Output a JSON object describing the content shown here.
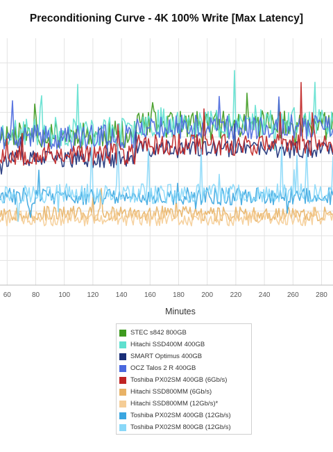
{
  "chart_data": {
    "type": "line",
    "title": "Preconditioning Curve - 4K 100% Write [Max Latency]",
    "xlabel": "Minutes",
    "ylabel": "",
    "x_ticks": [
      60,
      80,
      100,
      120,
      140,
      160,
      180,
      200,
      220,
      240,
      260,
      280
    ],
    "xlim": [
      55,
      288
    ],
    "ylim": [
      0,
      10
    ],
    "y_gridlines": [
      1,
      2,
      3,
      4,
      5,
      6,
      7,
      8,
      9
    ],
    "grid": true,
    "legend_position": "bottom",
    "series": [
      {
        "name": "STEC s842 800GB",
        "color": "#3e9a1f",
        "level": 6.1,
        "noise": 0.55,
        "spike": 1.4,
        "seed": 11
      },
      {
        "name": "Hitachi SSD400M 400GB",
        "color": "#5fe0cf",
        "level": 6.2,
        "noise": 0.6,
        "spike": 1.5,
        "seed": 23
      },
      {
        "name": "SMART Optimus 400GB",
        "color": "#1a2f78",
        "level": 5.1,
        "noise": 0.35,
        "spike": 0.7,
        "seed": 37
      },
      {
        "name": "OCZ Talos 2 R 400GB",
        "color": "#4a68de",
        "level": 6.0,
        "noise": 0.5,
        "spike": 1.2,
        "seed": 41
      },
      {
        "name": "Toshiba PX02SM 400GB (6Gb/s)",
        "color": "#c02424",
        "level": 5.3,
        "noise": 0.45,
        "spike": 1.8,
        "seed": 53
      },
      {
        "name": "Hitachi SSD800MM (6Gb/s)",
        "color": "#e8b266",
        "level": 2.9,
        "noise": 0.3,
        "spike": 0.6,
        "seed": 67
      },
      {
        "name": "Hitachi SSD800MM (12Gb/s)*",
        "color": "#f5cd96",
        "level": 2.7,
        "noise": 0.3,
        "spike": 0.6,
        "seed": 71
      },
      {
        "name": "Toshiba PX02SM 400GB (12Gb/s)",
        "color": "#3aa6e0",
        "level": 3.6,
        "noise": 0.35,
        "spike": 1.0,
        "seed": 83
      },
      {
        "name": "Toshiba PX02SM 800GB (12Gb/s)",
        "color": "#8ad8f8",
        "level": 3.7,
        "noise": 0.4,
        "spike": 1.4,
        "seed": 97
      }
    ]
  }
}
